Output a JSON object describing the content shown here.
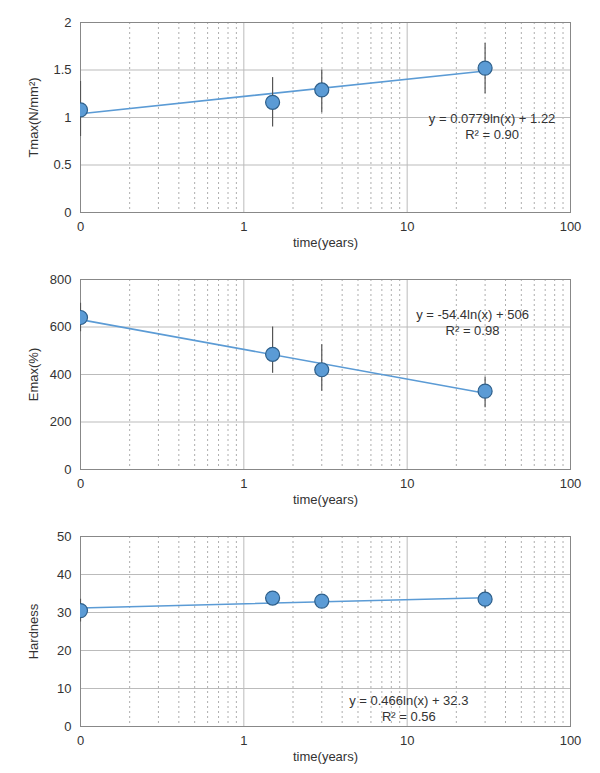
{
  "chart_data": [
    {
      "type": "scatter",
      "x_label": "time(years)",
      "y_label": "Tmax(N/mm²)",
      "x": [
        0.1,
        1.5,
        3,
        30
      ],
      "values": [
        1.08,
        1.16,
        1.29,
        1.52
      ],
      "error_low": [
        0.8,
        0.9,
        1.05,
        1.25
      ],
      "error_high": [
        1.38,
        1.42,
        1.5,
        1.78
      ],
      "trendline": {
        "x": [
          0.1,
          30
        ],
        "values": [
          1.04,
          1.49
        ]
      },
      "annotations": [
        "y = 0.0779ln(x) + 1.22",
        "R² = 0.90"
      ],
      "xlim": [
        0.1,
        100
      ],
      "xticks": [
        {
          "value": 0.1,
          "label": "0"
        },
        1,
        10,
        100
      ],
      "ylim": [
        0,
        2
      ],
      "yticks": [
        0,
        0.5,
        1,
        1.5,
        2
      ],
      "log": "x",
      "grid": true,
      "color": "#5b9bd5",
      "marker": "circle"
    },
    {
      "type": "scatter",
      "x_label": "time(years)",
      "y_label": "Emax(%)",
      "x": [
        0.1,
        1.5,
        3,
        30
      ],
      "values": [
        640,
        485,
        420,
        330
      ],
      "error_low": [
        580,
        405,
        330,
        260
      ],
      "error_high": [
        700,
        600,
        525,
        390
      ],
      "trendline": {
        "x": [
          0.1,
          30
        ],
        "values": [
          631,
          321
        ]
      },
      "annotations": [
        "y = -54.4ln(x) + 506",
        "R² = 0.98"
      ],
      "xlim": [
        0.1,
        100
      ],
      "xticks": [
        {
          "value": 0.1,
          "label": "0"
        },
        1,
        10,
        100
      ],
      "ylim": [
        0,
        800
      ],
      "yticks": [
        0,
        200,
        400,
        600,
        800
      ],
      "log": "x",
      "grid": true,
      "color": "#5b9bd5",
      "marker": "circle"
    },
    {
      "type": "scatter",
      "x_label": "time(years)",
      "y_label": "Hardness",
      "x": [
        0.1,
        1.5,
        3,
        30
      ],
      "values": [
        30.5,
        33.8,
        33,
        33.5
      ],
      "error_low": [
        27.5,
        32.5,
        32,
        31
      ],
      "error_high": [
        33.5,
        35,
        34,
        36
      ],
      "trendline": {
        "x": [
          0.1,
          30
        ],
        "values": [
          31.2,
          33.9
        ]
      },
      "annotations": [
        "y = 0.466ln(x) + 32.3",
        "R² = 0.56"
      ],
      "xlim": [
        0.1,
        100
      ],
      "xticks": [
        {
          "value": 0.1,
          "label": "0"
        },
        1,
        10,
        100
      ],
      "ylim": [
        0,
        50
      ],
      "yticks": [
        0,
        10,
        20,
        30,
        40,
        50
      ],
      "log": "x",
      "grid": true,
      "color": "#5b9bd5",
      "marker": "circle"
    }
  ]
}
